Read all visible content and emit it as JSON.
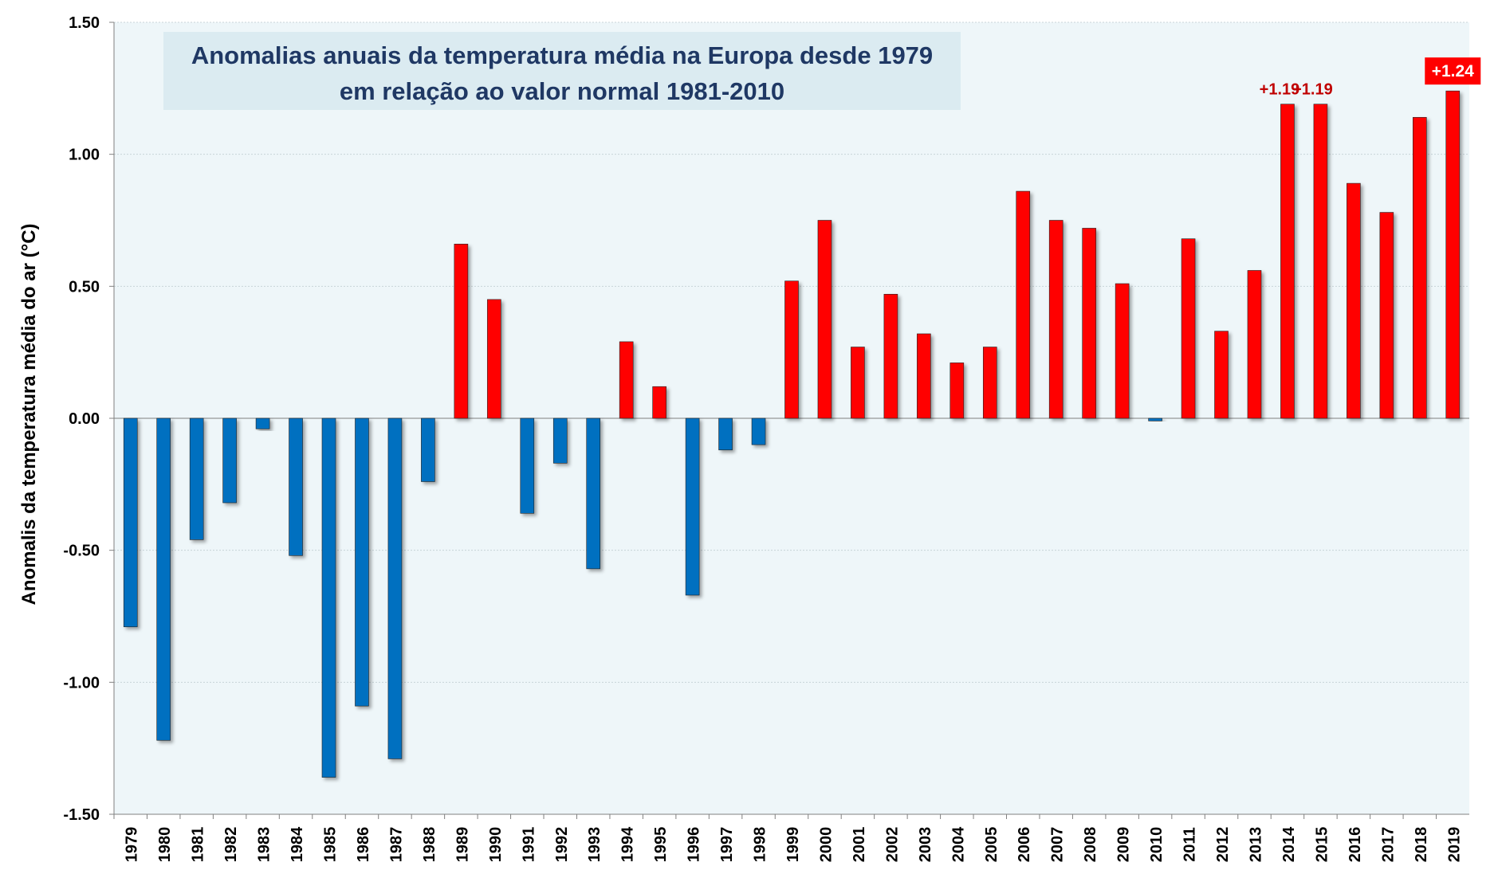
{
  "chart_data": {
    "type": "bar",
    "title_line1": "Anomalias anuais da temperatura média na Europa desde 1979",
    "title_line2": "em relação ao valor normal 1981-2010",
    "xlabel": "",
    "ylabel": "Anomalis da temperatura média do ar (°C)",
    "ylim": [
      -1.5,
      1.5
    ],
    "yticks": [
      "1.50",
      "1.00",
      "0.50",
      "0.00",
      "-0.50",
      "-1.00",
      "-1.50"
    ],
    "ytick_values": [
      1.5,
      1.0,
      0.5,
      0.0,
      -0.5,
      -1.0,
      -1.5
    ],
    "grid": true,
    "categories": [
      "1979",
      "1980",
      "1981",
      "1982",
      "1983",
      "1984",
      "1985",
      "1986",
      "1987",
      "1988",
      "1989",
      "1990",
      "1991",
      "1992",
      "1993",
      "1994",
      "1995",
      "1996",
      "1997",
      "1998",
      "1999",
      "2000",
      "2001",
      "2002",
      "2003",
      "2004",
      "2005",
      "2006",
      "2007",
      "2008",
      "2009",
      "2010",
      "2011",
      "2012",
      "2013",
      "2014",
      "2015",
      "2016",
      "2017",
      "2018",
      "2019"
    ],
    "values": [
      -0.79,
      -1.22,
      -0.46,
      -0.32,
      -0.04,
      -0.52,
      -1.36,
      -1.09,
      -1.29,
      -0.24,
      0.66,
      0.45,
      -0.36,
      -0.17,
      -0.57,
      0.29,
      0.12,
      -0.67,
      -0.12,
      -0.1,
      0.52,
      0.75,
      0.27,
      0.47,
      0.32,
      0.21,
      0.27,
      0.86,
      0.75,
      0.72,
      0.51,
      -0.01,
      0.68,
      0.33,
      0.56,
      1.19,
      1.19,
      0.89,
      0.78,
      1.14,
      1.24
    ],
    "colors": {
      "positive": "#ff0000",
      "negative": "#0070c0",
      "plot_bg": "#eef6f9",
      "title_bg": "#dbebf1",
      "title_text": "#1f3864",
      "label_text": "#c00000",
      "highlight_bg": "#ff0000",
      "highlight_text": "#ffffff"
    },
    "annotations": [
      {
        "year": "2014",
        "text": "+1.19",
        "style": "plain"
      },
      {
        "year": "2015",
        "text": "+1.19",
        "style": "plain"
      },
      {
        "year": "2019",
        "text": "+1.24",
        "style": "boxed"
      }
    ]
  }
}
